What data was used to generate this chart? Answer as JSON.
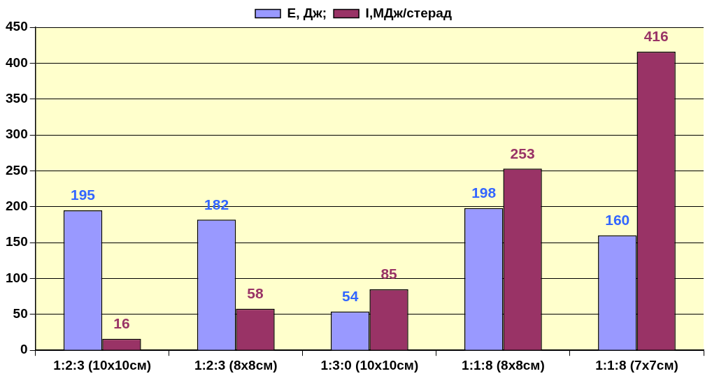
{
  "chart_data": {
    "type": "bar",
    "categories": [
      "1:2:3 (10x10см)",
      "1:2:3 (8x8см)",
      "1:3:0 (10x10см)",
      "1:1:8 (8x8см)",
      "1:1:8 (7x7см)"
    ],
    "series": [
      {
        "name": "E, Дж;",
        "color": "#9999ff",
        "values": [
          195,
          182,
          54,
          198,
          160
        ]
      },
      {
        "name": "I,МДж/стерад",
        "color": "#993366",
        "values": [
          16,
          58,
          85,
          253,
          416
        ]
      }
    ],
    "ylim": [
      0,
      450
    ],
    "yticks": [
      0,
      50,
      100,
      150,
      200,
      250,
      300,
      350,
      400,
      450
    ],
    "grid": "y",
    "legend": "top",
    "data_labels": true
  }
}
